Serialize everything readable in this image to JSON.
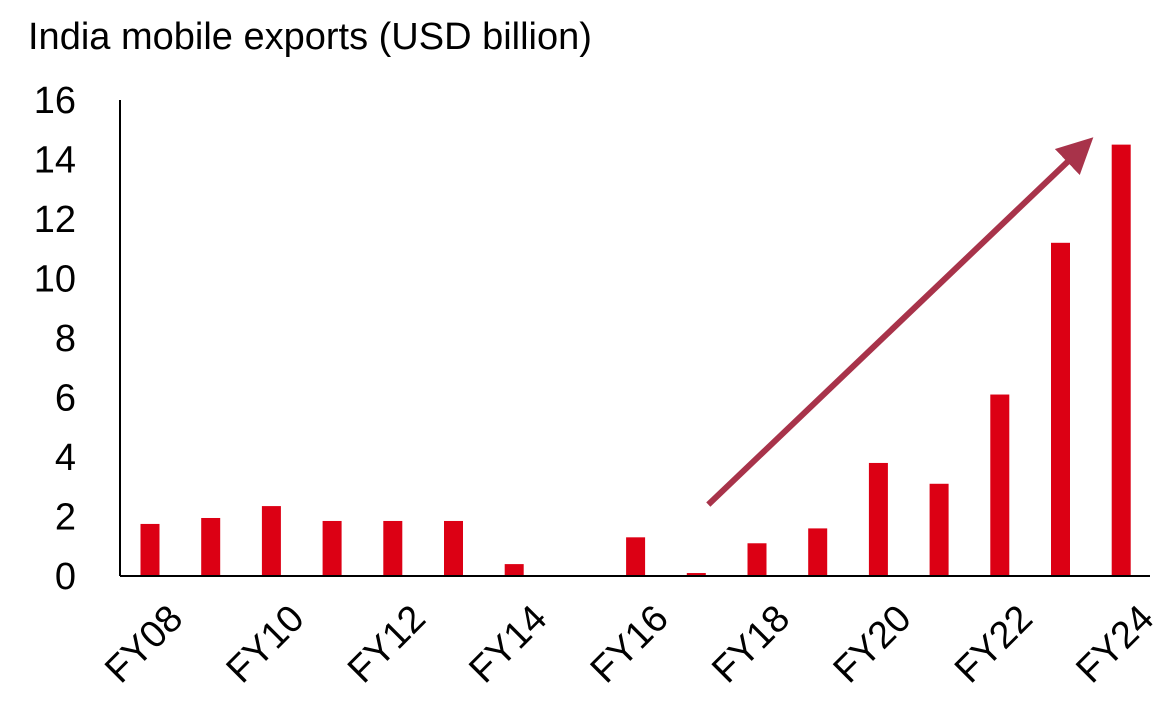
{
  "chart_data": {
    "type": "bar",
    "title": "India mobile exports (USD billion)",
    "xlabel": "",
    "ylabel": "",
    "ylim": [
      0,
      16
    ],
    "yticks": [
      0,
      2,
      4,
      6,
      8,
      10,
      12,
      14,
      16
    ],
    "categories": [
      "FY08",
      "FY09",
      "FY10",
      "FY11",
      "FY12",
      "FY13",
      "FY14",
      "FY15",
      "FY16",
      "FY17",
      "FY18",
      "FY19",
      "FY20",
      "FY21",
      "FY22",
      "FY23",
      "FY24"
    ],
    "xtick_labels": [
      "FY08",
      "FY10",
      "FY12",
      "FY14",
      "FY16",
      "FY18",
      "FY20",
      "FY22",
      "FY24"
    ],
    "values": [
      1.75,
      1.95,
      2.35,
      1.85,
      1.85,
      1.85,
      0.4,
      0,
      1.3,
      0.1,
      1.1,
      1.6,
      3.8,
      3.1,
      6.1,
      11.2,
      14.5
    ],
    "grid": false,
    "colors": {
      "bar": "#dc0014",
      "arrow": "#a8334a",
      "axis": "#000000"
    },
    "annotation": {
      "type": "trend-arrow",
      "from": [
        "FY17",
        2.4
      ],
      "to": [
        "FY24",
        15.2
      ]
    }
  }
}
